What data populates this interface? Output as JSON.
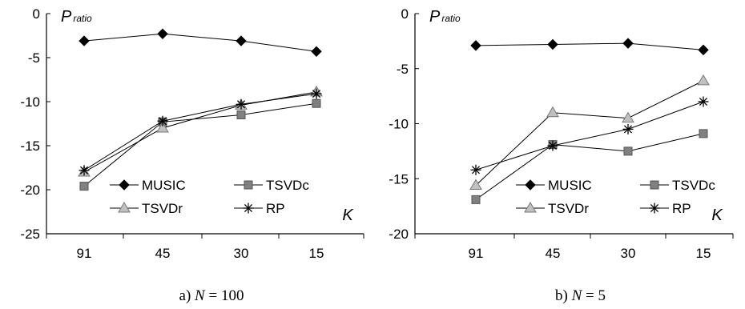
{
  "chart_data": [
    {
      "type": "line",
      "caption_prefix": "a) ",
      "caption_var": "N",
      "caption_rest": " = 100",
      "ylabel_var": "P",
      "ylabel_sub": "ratio",
      "xlabel_var": "K",
      "categories": [
        "91",
        "45",
        "30",
        "15"
      ],
      "yticks": [
        "0",
        "-5",
        "-10",
        "-15",
        "-20",
        "-25"
      ],
      "ylim": [
        -25,
        0
      ],
      "grid": false,
      "legend_position": "lower-right",
      "series": [
        {
          "name": "MUSIC",
          "values": [
            -3.1,
            -2.3,
            -3.1,
            -4.3
          ]
        },
        {
          "name": "TSVDc",
          "values": [
            -19.6,
            -12.3,
            -11.5,
            -10.2
          ]
        },
        {
          "name": "TSVDr",
          "values": [
            -18.0,
            -13.0,
            -10.4,
            -8.9
          ]
        },
        {
          "name": "RP",
          "values": [
            -17.8,
            -12.2,
            -10.3,
            -9.1
          ]
        }
      ]
    },
    {
      "type": "line",
      "caption_prefix": "b) ",
      "caption_var": "N",
      "caption_rest": " = 5",
      "ylabel_var": "P",
      "ylabel_sub": "ratio",
      "xlabel_var": "K",
      "categories": [
        "91",
        "45",
        "30",
        "15"
      ],
      "yticks": [
        "0",
        "-5",
        "-10",
        "-15",
        "-20"
      ],
      "ylim": [
        -20,
        0
      ],
      "grid": false,
      "legend_position": "lower-right",
      "series": [
        {
          "name": "MUSIC",
          "values": [
            -2.9,
            -2.8,
            -2.7,
            -3.3
          ]
        },
        {
          "name": "TSVDc",
          "values": [
            -16.9,
            -11.9,
            -12.5,
            -10.9
          ]
        },
        {
          "name": "TSVDr",
          "values": [
            -15.6,
            -9.0,
            -9.5,
            -6.1
          ]
        },
        {
          "name": "RP",
          "values": [
            -14.2,
            -12.0,
            -10.5,
            -8.0
          ]
        }
      ]
    }
  ],
  "colors": {
    "MUSIC": "#000000",
    "TSVDc": "#808080",
    "TSVDr": "#c0c0c0",
    "RP": "#000000",
    "line": "#000000"
  },
  "markers": {
    "MUSIC": "diamond",
    "TSVDc": "square",
    "TSVDr": "triangle",
    "RP": "asterisk"
  }
}
